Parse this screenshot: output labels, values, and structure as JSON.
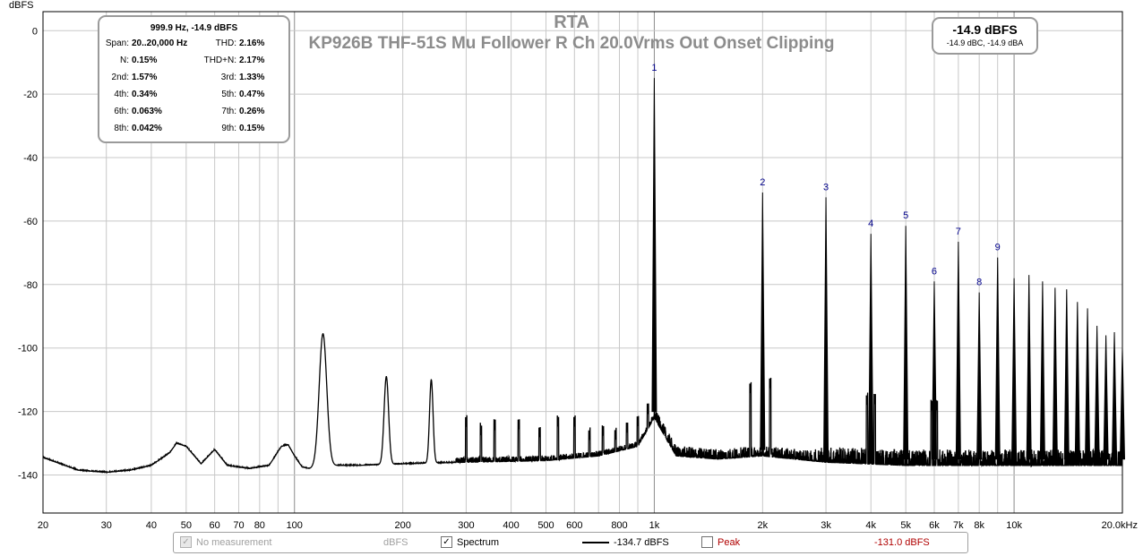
{
  "chart_data": {
    "type": "line",
    "title": "RTA",
    "subtitle": "KP926B THF-51S Mu Follower R Ch 20.0Vrms Out Onset Clipping",
    "ylabel": "dBFS",
    "xscale": "log",
    "xlim": [
      20,
      20000
    ],
    "ylim": [
      -152,
      6
    ],
    "x_ticks": [
      {
        "v": 20,
        "label": "20"
      },
      {
        "v": 30,
        "label": "30"
      },
      {
        "v": 40,
        "label": "40"
      },
      {
        "v": 50,
        "label": "50"
      },
      {
        "v": 60,
        "label": "60"
      },
      {
        "v": 70,
        "label": "70"
      },
      {
        "v": 80,
        "label": "80"
      },
      {
        "v": 100,
        "label": "100"
      },
      {
        "v": 200,
        "label": "200"
      },
      {
        "v": 300,
        "label": "300"
      },
      {
        "v": 400,
        "label": "400"
      },
      {
        "v": 500,
        "label": "500"
      },
      {
        "v": 600,
        "label": "600"
      },
      {
        "v": 800,
        "label": "800"
      },
      {
        "v": 1000,
        "label": "1k"
      },
      {
        "v": 2000,
        "label": "2k"
      },
      {
        "v": 3000,
        "label": "3k"
      },
      {
        "v": 4000,
        "label": "4k"
      },
      {
        "v": 5000,
        "label": "5k"
      },
      {
        "v": 6000,
        "label": "6k"
      },
      {
        "v": 7000,
        "label": "7k"
      },
      {
        "v": 8000,
        "label": "8k"
      },
      {
        "v": 10000,
        "label": "10k"
      },
      {
        "v": 20000,
        "label": "20.0kHz"
      }
    ],
    "y_ticks": [
      0,
      -20,
      -40,
      -60,
      -80,
      -100,
      -120,
      -140
    ],
    "grid": true,
    "series": [
      {
        "name": "Spectrum",
        "color": "#000000",
        "noise_floor": [
          [
            20,
            -134.5
          ],
          [
            25,
            -138.5
          ],
          [
            30,
            -139.2
          ],
          [
            35,
            -138.5
          ],
          [
            40,
            -137
          ],
          [
            45,
            -133
          ],
          [
            47,
            -130
          ],
          [
            50,
            -131
          ],
          [
            55,
            -136.5
          ],
          [
            60,
            -132
          ],
          [
            65,
            -137
          ],
          [
            75,
            -138
          ],
          [
            85,
            -137
          ],
          [
            92,
            -131
          ],
          [
            96,
            -130.5
          ],
          [
            100,
            -134
          ],
          [
            105,
            -137.5
          ],
          [
            110,
            -138
          ],
          [
            120,
            -137
          ],
          [
            150,
            -137
          ],
          [
            200,
            -136.5
          ],
          [
            300,
            -136
          ],
          [
            500,
            -135.5
          ],
          [
            700,
            -134
          ],
          [
            900,
            -131
          ],
          [
            1000,
            -122
          ],
          [
            1150,
            -134
          ],
          [
            1500,
            -135
          ],
          [
            2000,
            -134
          ],
          [
            3000,
            -136
          ],
          [
            5000,
            -137
          ],
          [
            10000,
            -137
          ],
          [
            20000,
            -137
          ]
        ],
        "hum_peaks": [
          {
            "f": 120,
            "db": -95.5,
            "w": 0.03
          },
          {
            "f": 180,
            "db": -109,
            "w": 0.018
          },
          {
            "f": 240,
            "db": -110,
            "w": 0.014
          }
        ],
        "minor_peaks": [
          [
            300,
            -125
          ],
          [
            330,
            -127.5
          ],
          [
            360,
            -126
          ],
          [
            420,
            -126
          ],
          [
            480,
            -128.5
          ],
          [
            540,
            -125
          ],
          [
            600,
            -125
          ],
          [
            660,
            -129
          ],
          [
            720,
            -128
          ],
          [
            780,
            -129
          ],
          [
            840,
            -127
          ],
          [
            900,
            -125
          ],
          [
            960,
            -121
          ],
          [
            1850,
            -114.5
          ],
          [
            2100,
            -113
          ],
          [
            3900,
            -118
          ],
          [
            4100,
            -118
          ],
          [
            5900,
            -120
          ],
          [
            6100,
            -120
          ],
          [
            8000,
            -122.5
          ]
        ],
        "harmonics": [
          {
            "n": 1,
            "f": 1000,
            "db": -14.9
          },
          {
            "n": 2,
            "f": 2000,
            "db": -51
          },
          {
            "n": 3,
            "f": 3000,
            "db": -52.5
          },
          {
            "n": 4,
            "f": 4000,
            "db": -64
          },
          {
            "n": 5,
            "f": 5000,
            "db": -61.5
          },
          {
            "n": 6,
            "f": 6000,
            "db": -79
          },
          {
            "n": 7,
            "f": 7000,
            "db": -66.5
          },
          {
            "n": 8,
            "f": 8000,
            "db": -82.5
          },
          {
            "n": 9,
            "f": 9000,
            "db": -71.5
          },
          {
            "n": 10,
            "f": 10000,
            "db": -78
          },
          {
            "n": 11,
            "f": 11000,
            "db": -77
          },
          {
            "n": 12,
            "f": 12000,
            "db": -79
          },
          {
            "n": 13,
            "f": 13000,
            "db": -81
          },
          {
            "n": 14,
            "f": 14000,
            "db": -81.5
          },
          {
            "n": 15,
            "f": 15000,
            "db": -85.5
          },
          {
            "n": 16,
            "f": 16000,
            "db": -87.5
          },
          {
            "n": 17,
            "f": 17000,
            "db": -93
          },
          {
            "n": 18,
            "f": 18000,
            "db": -96
          },
          {
            "n": 19,
            "f": 19000,
            "db": -95
          },
          {
            "n": 20,
            "f": 20000,
            "db": -100
          }
        ],
        "harmonic_labels": [
          "1",
          "2",
          "3",
          "4",
          "5",
          "6",
          "7",
          "8",
          "9"
        ]
      }
    ]
  },
  "harmonics_box": {
    "header": "999.9 Hz, -14.9 dBFS",
    "rows": [
      {
        "l1": "Span:",
        "v1": "20..20,000 Hz",
        "l2": "THD:",
        "v2": "2.16%"
      },
      {
        "l1": "N:",
        "v1": "0.15%",
        "l2": "THD+N:",
        "v2": "2.17%"
      },
      {
        "l1": "2nd:",
        "v1": "1.57%",
        "l2": "3rd:",
        "v2": "1.33%"
      },
      {
        "l1": "4th:",
        "v1": "0.34%",
        "l2": "5th:",
        "v2": "0.47%"
      },
      {
        "l1": "6th:",
        "v1": "0.063%",
        "l2": "7th:",
        "v2": "0.26%"
      },
      {
        "l1": "8th:",
        "v1": "0.042%",
        "l2": "9th:",
        "v2": "0.15%"
      }
    ]
  },
  "level_box": {
    "main": "-14.9 dBFS",
    "sub": "-14.9 dBC, -14.9 dBA"
  },
  "legend": {
    "no_measurement": {
      "label": "No measurement",
      "unit": "dBFS",
      "checked": true
    },
    "spectrum": {
      "label": "Spectrum",
      "value": "-134.7 dBFS",
      "checked": true
    },
    "peak": {
      "label": "Peak",
      "value": "-131.0 dBFS",
      "checked": false,
      "color": "#b00000"
    }
  },
  "colors": {
    "grid": "#c8c8c8",
    "axis": "#000000",
    "harmonic_label": "#00008b",
    "gray_text": "#8c8c8c"
  }
}
